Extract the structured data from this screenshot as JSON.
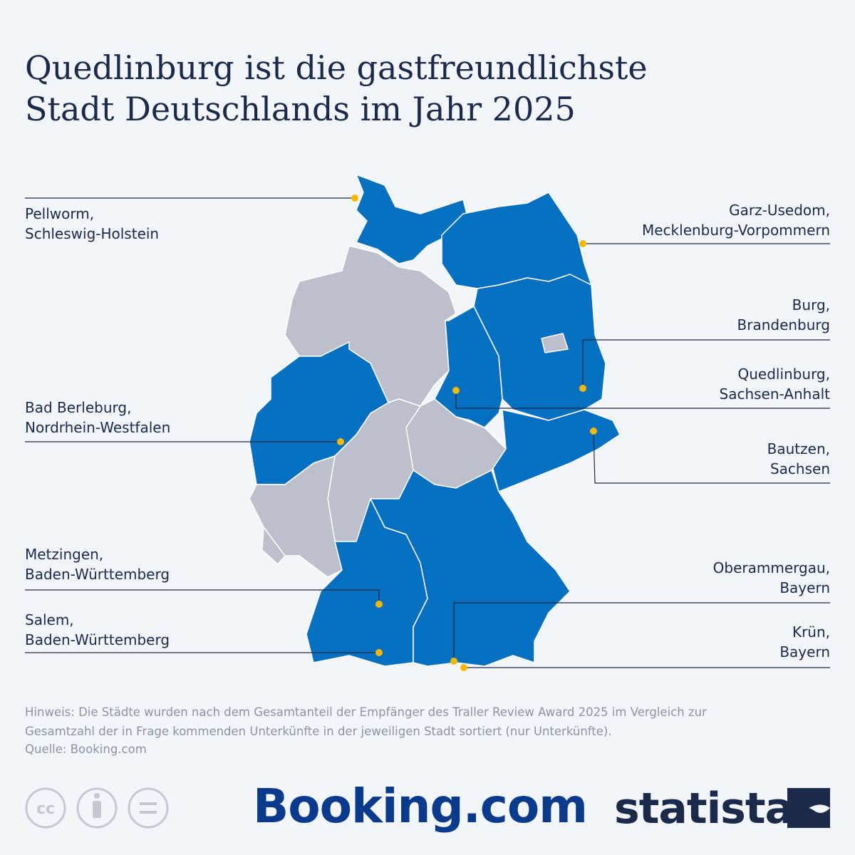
{
  "header": {
    "title": [
      "Quedlinburg ist die gastfreundlichste",
      "Stadt Deutschlands im Jahr 2025"
    ]
  },
  "locations": [
    {
      "city": "Pellworm,",
      "state": "Schleswig-Holstein"
    },
    {
      "city": "Bad Berleburg,",
      "state": "Nordrhein-Westfalen"
    },
    {
      "city": "Metzingen,",
      "state": "Baden-Württemberg"
    },
    {
      "city": "Salem,",
      "state": "Baden-Württemberg"
    },
    {
      "city": "Garz-Usedom,",
      "state": "Mecklenburg-Vorpommern"
    },
    {
      "city": "Burg,",
      "state": "Brandenburg"
    },
    {
      "city": "Quedlinburg,",
      "state": "Sachsen-Anhalt"
    },
    {
      "city": "Bautzen,",
      "state": "Sachsen"
    },
    {
      "city": "Oberammergau,",
      "state": "Bayern"
    },
    {
      "city": "Krün,",
      "state": "Bayern"
    }
  ],
  "footer": {
    "note": "Hinweis: Die Städte wurden nach dem Gesamtanteil der Empfänger des Traller Review Award 2025 im Vergleich zur Gesamtzahl der in Frage kommenden Unterkünfte in der jeweiligen Stadt sortiert (nur Unterkünfte).",
    "source": "Quelle: Booking.com",
    "partner_logo": "Booking.com",
    "brand_logo": "statista"
  }
}
